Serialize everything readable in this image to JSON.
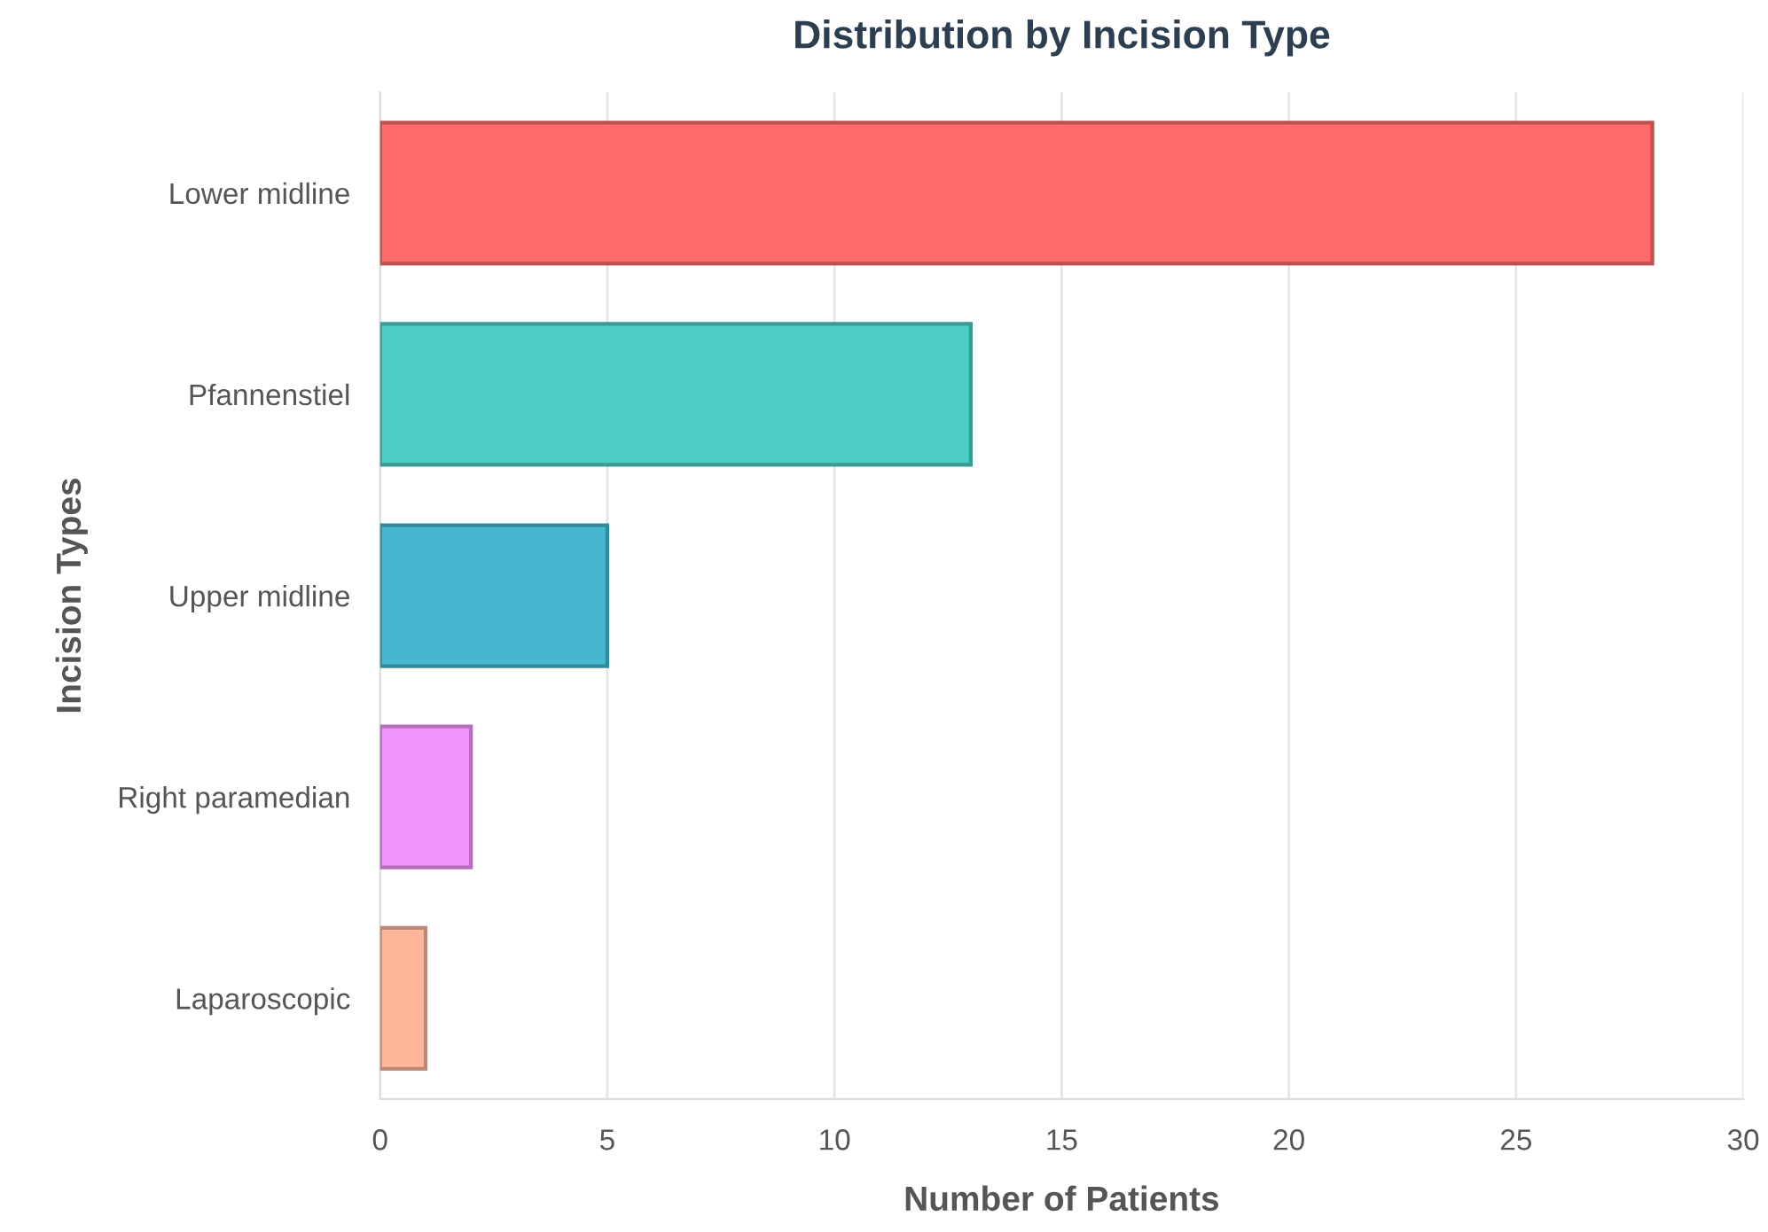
{
  "chart_data": {
    "type": "bar",
    "orientation": "horizontal",
    "title": "Distribution by Incision Type",
    "xlabel": "Number of Patients",
    "ylabel": "Incision Types",
    "categories": [
      "Lower midline",
      "Pfannenstiel",
      "Upper midline",
      "Right paramedian",
      "Laparoscopic"
    ],
    "values": [
      28,
      13,
      5,
      2,
      1
    ],
    "colors": [
      "#ff6b6b",
      "#4ecdc4",
      "#45b7d1",
      "#f093fb",
      "#ffb69b"
    ],
    "xlim": [
      0,
      30
    ],
    "xticks": [
      0,
      5,
      10,
      15,
      20,
      25,
      30
    ],
    "grid": "x",
    "legend": false
  }
}
